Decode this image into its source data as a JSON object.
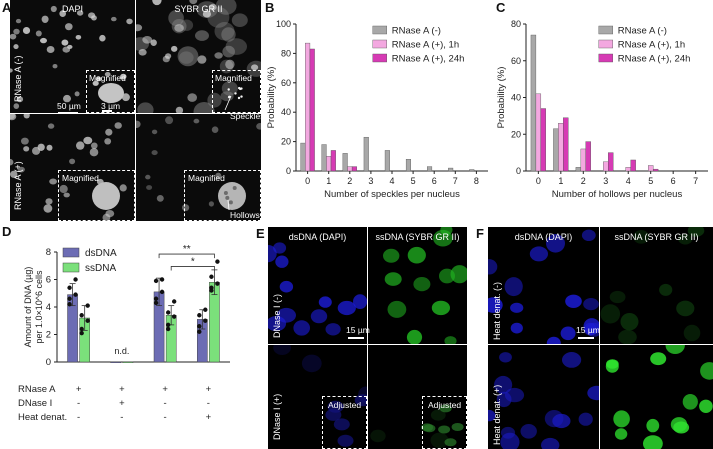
{
  "panel_labels": {
    "a": "A",
    "b": "B",
    "c": "C",
    "d": "D",
    "e": "E",
    "f": "F"
  },
  "panelA": {
    "col1": "DAPI",
    "col2": "SYBR GR II",
    "row1": "RNase A (-)",
    "row2": "RNase A (+)",
    "magnified": "Magnified",
    "scale_big": "50 µm",
    "scale_small": "3 µm",
    "speckles": "Speckles",
    "hollows": "Hollows"
  },
  "panelE": {
    "col1": "dsDNA (DAPI)",
    "col2": "ssDNA (SYBR GR II)",
    "row1": "DNase I (-)",
    "row2": "DNase I (+)",
    "scale": "15 µm",
    "adjusted": "Adjusted"
  },
  "panelF": {
    "col1": "dsDNA (DAPI)",
    "col2": "ssDNA (SYBR GR II)",
    "row1": "Heat denat. (-)",
    "row2": "Heat denat. (+)",
    "scale": "15 µm"
  },
  "colors": {
    "gray": "#a8a8a8",
    "light_pink": "#f3a8e0",
    "magenta": "#d63ab4",
    "purple": "#6c6cb4",
    "green": "#7be07b"
  },
  "chart_data": [
    {
      "id": "B",
      "type": "bar",
      "xlabel": "Number of speckles per nucleus",
      "ylabel": "Probability (%)",
      "categories": [
        "0",
        "1",
        "2",
        "3",
        "4",
        "5",
        "6",
        "7",
        "8"
      ],
      "ylim": [
        0,
        100
      ],
      "yticks": [
        "0",
        "20",
        "40",
        "60",
        "80",
        "100"
      ],
      "legend": "top-right",
      "series": [
        {
          "name": "RNase A (-)",
          "color": "#a8a8a8",
          "values": [
            19,
            18,
            12,
            23,
            14,
            8,
            3,
            2,
            1
          ]
        },
        {
          "name": "RNase A (+), 1h",
          "color": "#f3a8e0",
          "values": [
            87,
            10,
            3,
            0,
            0,
            0,
            0,
            0,
            0
          ]
        },
        {
          "name": "RNase A (+), 24h",
          "color": "#d63ab4",
          "values": [
            83,
            14,
            3,
            0,
            0,
            0,
            0,
            0,
            0
          ]
        }
      ]
    },
    {
      "id": "C",
      "type": "bar",
      "xlabel": "Number of hollows per nucleus",
      "ylabel": "Probability (%)",
      "categories": [
        "0",
        "1",
        "2",
        "3",
        "4",
        "5",
        "6",
        "7"
      ],
      "ylim": [
        0,
        80
      ],
      "yticks": [
        "0",
        "20",
        "40",
        "60",
        "80"
      ],
      "legend": "top-right",
      "series": [
        {
          "name": "RNase A (-)",
          "color": "#a8a8a8",
          "values": [
            74,
            23,
            2,
            0,
            0,
            0,
            0,
            0
          ]
        },
        {
          "name": "RNase A (+), 1h",
          "color": "#f3a8e0",
          "values": [
            42,
            26,
            12,
            5,
            2,
            3,
            0,
            0
          ]
        },
        {
          "name": "RNase A (+), 24h",
          "color": "#d63ab4",
          "values": [
            34,
            29,
            16,
            10,
            6,
            1,
            0,
            0
          ]
        }
      ]
    },
    {
      "id": "D",
      "type": "bar",
      "ylabel": "Amount of DNA (µg) per 1.0×10^6 cells",
      "ylim": [
        0,
        8
      ],
      "yticks": [
        "0",
        "2",
        "4",
        "6",
        "8"
      ],
      "legend": "top-left",
      "series": [
        {
          "name": "dsDNA",
          "color": "#6c6cb4",
          "values": [
            4.9,
            0.02,
            5.1,
            3.1
          ],
          "errors": [
            0.8,
            0,
            1.0,
            0.7
          ],
          "points": [
            [
              4.2,
              4.9,
              5.4,
              6.0,
              4.6
            ],
            [],
            [
              4.6,
              5.1,
              5.9,
              6.0,
              4.3
            ],
            [
              2.6,
              3.0,
              3.4,
              3.8,
              2.2
            ]
          ]
        },
        {
          "name": "ssDNA",
          "color": "#7be07b",
          "values": [
            3.2,
            0.02,
            3.4,
            5.8
          ],
          "errors": [
            0.9,
            0,
            0.7,
            0.9
          ],
          "points": [
            [
              2.4,
              3.0,
              3.4,
              4.1,
              2.1
            ],
            [],
            [
              2.7,
              3.3,
              3.6,
              4.4,
              2.4
            ],
            [
              5.2,
              5.7,
              6.2,
              7.3,
              5.4
            ]
          ]
        }
      ],
      "annotations": [
        "n.d.",
        "*",
        "**"
      ],
      "conditions": [
        {
          "name": "RNase A",
          "values": [
            "+",
            "+",
            "+",
            "+"
          ]
        },
        {
          "name": "DNase I",
          "values": [
            "-",
            "+",
            "-",
            "-"
          ]
        },
        {
          "name": "Heat denat.",
          "values": [
            "-",
            "-",
            "-",
            "+"
          ]
        }
      ]
    }
  ]
}
